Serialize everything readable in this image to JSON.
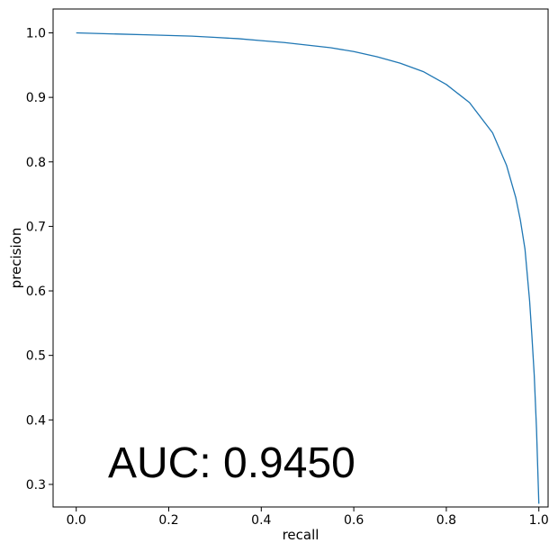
{
  "chart_data": {
    "type": "line",
    "xlabel": "recall",
    "ylabel": "precision",
    "xlim": [
      -0.05,
      1.02
    ],
    "ylim": [
      0.265,
      1.037
    ],
    "x_ticks": [
      0.0,
      0.2,
      0.4,
      0.6,
      0.8,
      1.0
    ],
    "y_ticks": [
      0.3,
      0.4,
      0.5,
      0.6,
      0.7,
      0.8,
      0.9,
      1.0
    ],
    "x_tick_labels": [
      "0.0",
      "0.2",
      "0.4",
      "0.6",
      "0.8",
      "1.0"
    ],
    "y_tick_labels": [
      "0.3",
      "0.4",
      "0.5",
      "0.6",
      "0.7",
      "0.8",
      "0.9",
      "1.0"
    ],
    "grid": false,
    "annotation": "AUC: 0.9450",
    "series": [
      {
        "color": "#1f77b4",
        "x": [
          0.0,
          0.05,
          0.1,
          0.15,
          0.2,
          0.25,
          0.3,
          0.35,
          0.4,
          0.45,
          0.5,
          0.55,
          0.6,
          0.65,
          0.7,
          0.75,
          0.8,
          0.85,
          0.9,
          0.93,
          0.95,
          0.96,
          0.97,
          0.98,
          0.985,
          0.99,
          0.995,
          1.0
        ],
        "y": [
          1.0,
          0.999,
          0.998,
          0.997,
          0.996,
          0.995,
          0.993,
          0.991,
          0.988,
          0.985,
          0.981,
          0.977,
          0.971,
          0.963,
          0.953,
          0.94,
          0.92,
          0.892,
          0.845,
          0.795,
          0.745,
          0.71,
          0.665,
          0.585,
          0.53,
          0.47,
          0.385,
          0.27
        ]
      }
    ]
  }
}
